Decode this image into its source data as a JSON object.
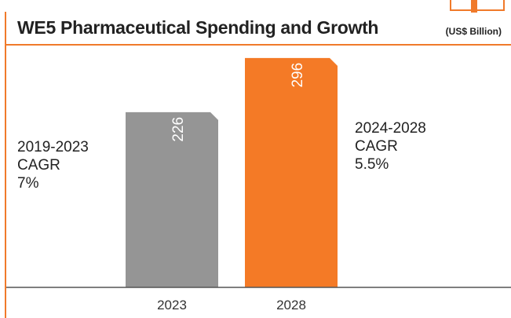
{
  "header": {
    "title": "WE5 Pharmaceutical Spending and Growth",
    "unit": "(US$ Billion)"
  },
  "annotations": {
    "left": {
      "period": "2019-2023",
      "label": "CAGR",
      "value": "7%"
    },
    "right": {
      "period": "2024-2028",
      "label": "CAGR",
      "value": "5.5%"
    }
  },
  "colors": {
    "accent": "#f07a2a",
    "bar_2023": "#959595",
    "bar_2028": "#f47a26"
  },
  "chart_data": {
    "type": "bar",
    "title": "WE5 Pharmaceutical Spending and Growth",
    "ylabel": "(US$ Billion)",
    "categories": [
      "2023",
      "2028"
    ],
    "values": [
      226,
      296
    ],
    "bar_colors": [
      "#959595",
      "#f47a26"
    ],
    "ylim": [
      0,
      310
    ],
    "grid": false,
    "legend": "none"
  }
}
